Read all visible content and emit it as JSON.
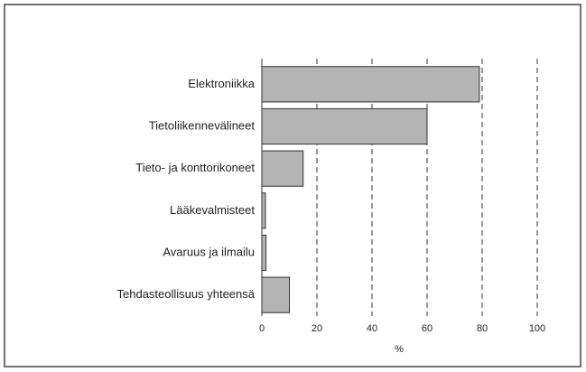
{
  "chart_data": {
    "type": "bar",
    "orientation": "horizontal",
    "categories": [
      "Elektroniikka",
      "Tietoliikennevälineet",
      "Tieto- ja konttorikoneet",
      "Lääkevalmisteet",
      "Avaruus ja ilmailu",
      "Tehdasteollisuus yhteensä"
    ],
    "values": [
      79,
      60,
      15,
      1.3,
      1.5,
      10
    ],
    "color": "#b4b4b4",
    "xlabel": "%",
    "xlim": [
      0,
      100
    ],
    "xticks": [
      0,
      20,
      40,
      60,
      80,
      100
    ],
    "grid": true
  }
}
